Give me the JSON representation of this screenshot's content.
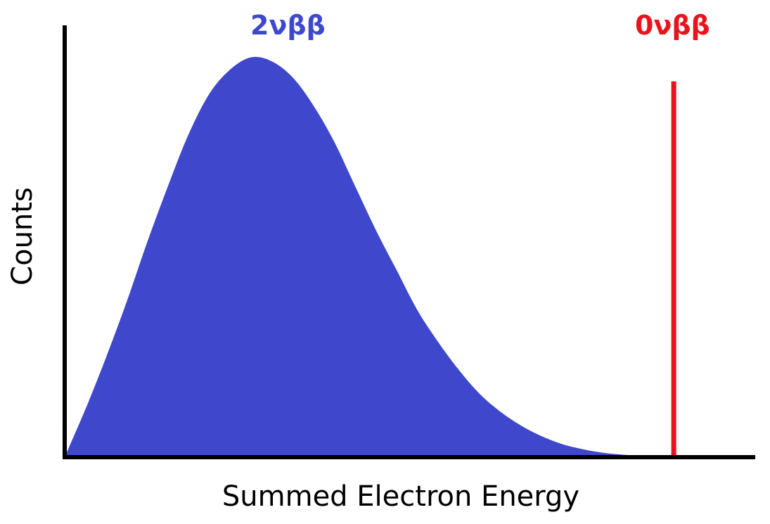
{
  "chart_data": {
    "type": "area",
    "title": "",
    "xlabel": "Summed Electron Energy",
    "ylabel": "Counts",
    "grid": false,
    "legend": "none",
    "xlim": [
      0,
      1
    ],
    "ylim": [
      0,
      1.08
    ],
    "series": [
      {
        "name": "2νββ",
        "color": "#3f48cc",
        "kind": "area",
        "x": [
          0.0,
          0.03,
          0.06,
          0.09,
          0.12,
          0.15,
          0.18,
          0.21,
          0.24,
          0.27,
          0.3,
          0.33,
          0.36,
          0.39,
          0.42,
          0.45,
          0.48,
          0.51,
          0.54,
          0.57,
          0.6,
          0.63,
          0.66,
          0.69,
          0.72,
          0.75,
          0.78,
          0.81,
          0.84,
          0.87,
          0.9
        ],
        "y": [
          0.0,
          0.12,
          0.25,
          0.39,
          0.54,
          0.68,
          0.81,
          0.91,
          0.97,
          1.0,
          0.99,
          0.95,
          0.88,
          0.79,
          0.68,
          0.57,
          0.47,
          0.37,
          0.29,
          0.22,
          0.16,
          0.115,
          0.08,
          0.053,
          0.033,
          0.02,
          0.011,
          0.006,
          0.003,
          0.001,
          0.0
        ]
      },
      {
        "name": "0νββ",
        "color": "#e8131c",
        "kind": "line",
        "x": [
          0.882,
          0.882
        ],
        "y": [
          0.0,
          0.94
        ]
      }
    ]
  }
}
